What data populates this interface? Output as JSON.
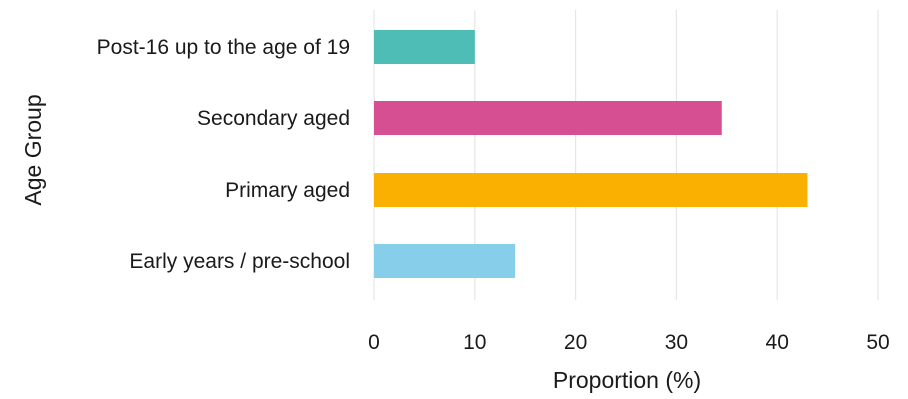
{
  "chart_data": {
    "type": "bar",
    "orientation": "horizontal",
    "categories": [
      "Post-16 up to the age of 19",
      "Secondary aged",
      "Primary aged",
      "Early years / pre-school"
    ],
    "values": [
      10,
      34.5,
      43,
      14
    ],
    "colors": [
      "#4DBDB5",
      "#D64F93",
      "#F9B000",
      "#87CEEB"
    ],
    "xlabel": "Proportion (%)",
    "ylabel": "Age Group",
    "xlim": [
      0,
      50
    ],
    "xticks": [
      0,
      10,
      20,
      30,
      40,
      50
    ],
    "grid": "vertical"
  }
}
